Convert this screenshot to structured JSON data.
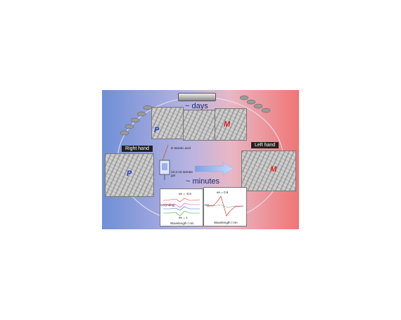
{
  "top_label": "~ days",
  "mid_label": "~ minutes",
  "left_hand_label": "Right hand",
  "right_hand_label": "Left hand",
  "letters": {
    "p1": "P",
    "m1": "M",
    "p2": "P",
    "m2": "M"
  },
  "scheme": {
    "acid": "D-tartaric acid",
    "gel": "16-2-16 tartrate gel"
  },
  "plots": {
    "left_ylabel": "CD(mdeg)",
    "left_xlabel": "Wavelength / nm",
    "right_xlabel": "Wavelength / nm",
    "right_ylabel": "CD",
    "ee1": "ee = -0.6",
    "ee2": "ee = 0.6",
    "ee3": "ee = 1"
  },
  "colors": {
    "bg_left": "#6f8fd6",
    "bg_right": "#f07575",
    "text_dark": "#1c2a66"
  }
}
